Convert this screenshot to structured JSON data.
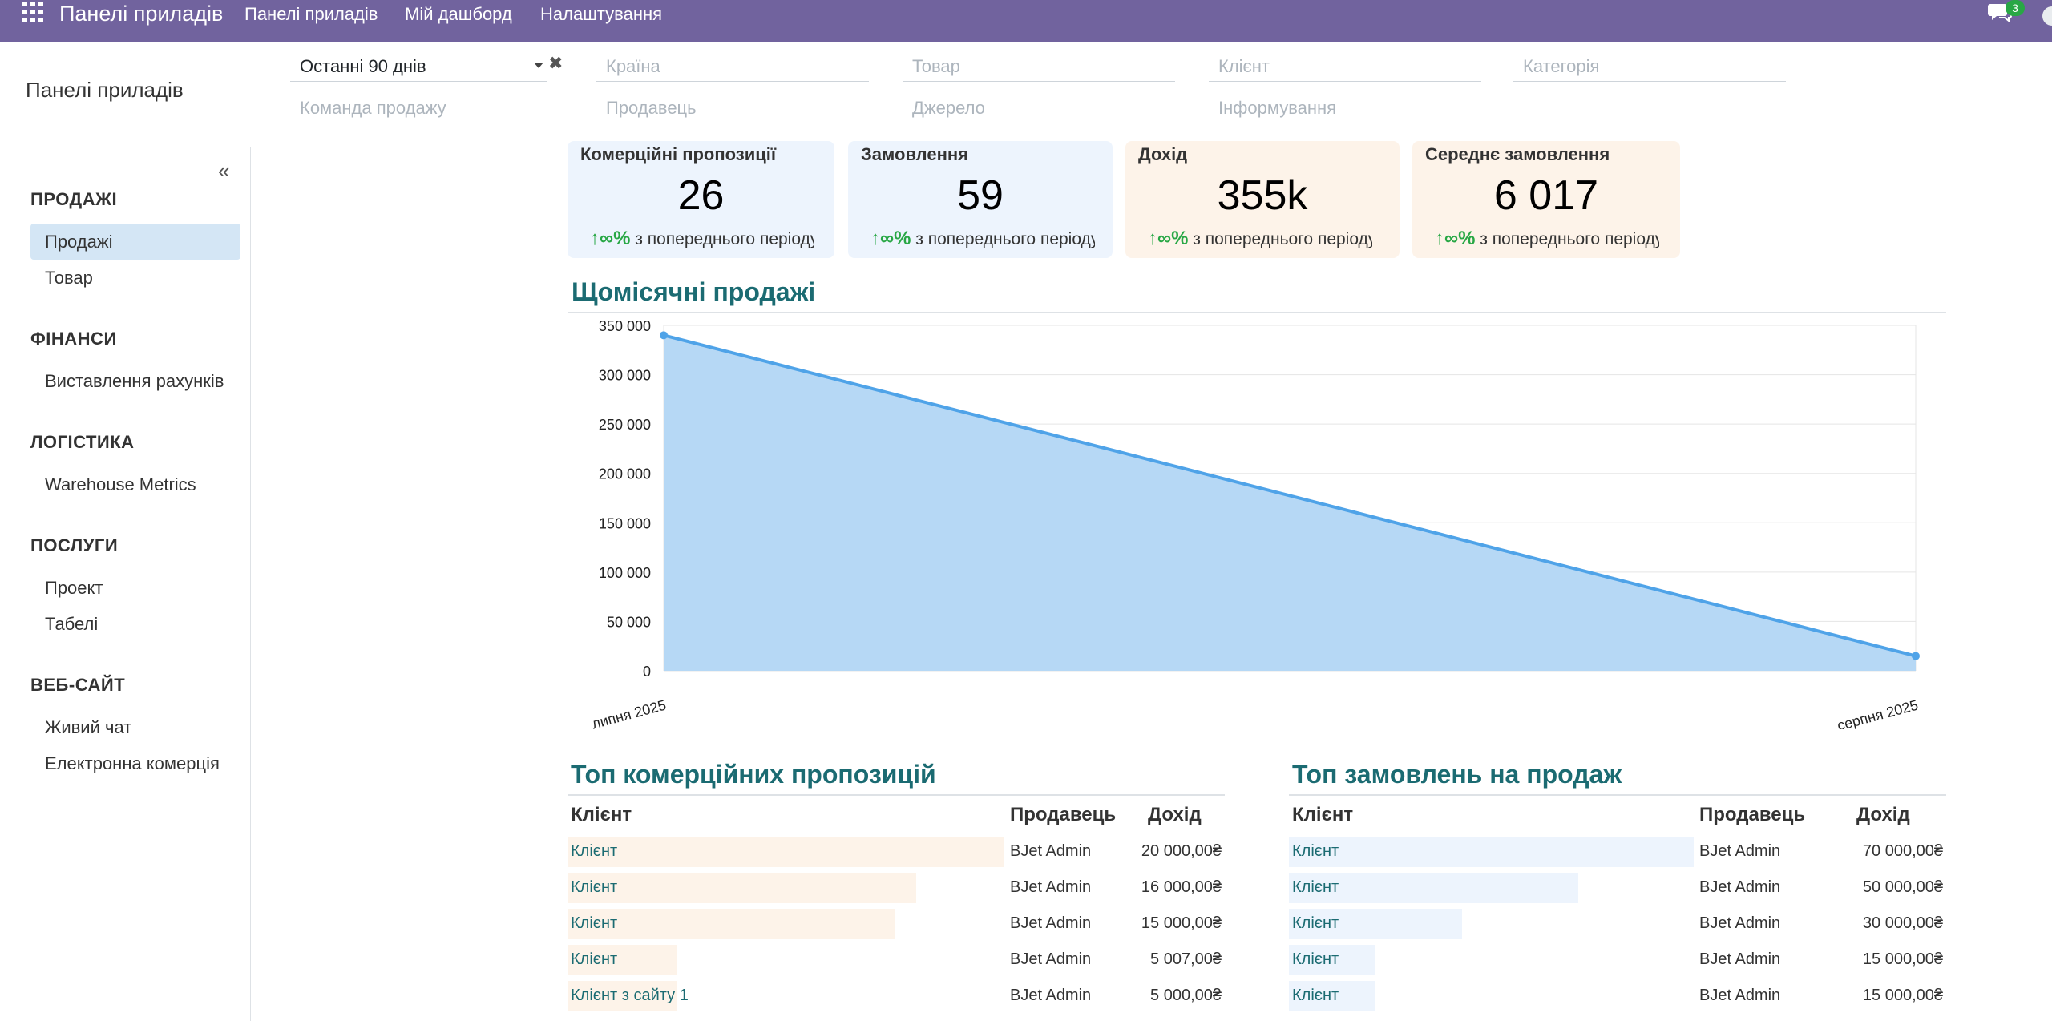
{
  "topbar": {
    "app_title": "Панелі приладів",
    "menu": [
      "Панелі приладів",
      "Мій дашборд",
      "Налаштування"
    ],
    "chat_badge": "3"
  },
  "control": {
    "title": "Панелі приладів",
    "period": "Останні 90 днів",
    "filters": {
      "country": "Країна",
      "product": "Товар",
      "customer": "Клієнт",
      "category": "Категорія",
      "sales_team": "Команда продажу",
      "salesperson": "Продавець",
      "source": "Джерело",
      "medium": "Інформування"
    }
  },
  "sidebar": {
    "sections": [
      {
        "title": "ПРОДАЖІ",
        "items": [
          "Продажі",
          "Товар"
        ]
      },
      {
        "title": "ФІНАНСИ",
        "items": [
          "Виставлення рахунків"
        ]
      },
      {
        "title": "ЛОГІСТИКА",
        "items": [
          "Warehouse Metrics"
        ]
      },
      {
        "title": "ПОСЛУГИ",
        "items": [
          "Проект",
          "Табелі"
        ]
      },
      {
        "title": "ВЕБ-САЙТ",
        "items": [
          "Живий чат",
          "Електронна комерція"
        ]
      }
    ]
  },
  "kpis": [
    {
      "label": "Комерційні пропозиції",
      "value": "26",
      "trend_sign": "↑∞%",
      "trend_text": "з попереднього періоду"
    },
    {
      "label": "Замовлення",
      "value": "59",
      "trend_sign": "↑∞%",
      "trend_text": "з попереднього періоду"
    },
    {
      "label": "Дохід",
      "value": "355k",
      "trend_sign": "↑∞%",
      "trend_text": "з попереднього періоду"
    },
    {
      "label": "Середнє замовлення",
      "value": "6 017",
      "trend_sign": "↑∞%",
      "trend_text": "з попереднього періоду"
    }
  ],
  "monthly_sales": {
    "title": "Щомісячні продажі"
  },
  "chart_data": {
    "type": "area",
    "x": [
      "липня 2025",
      "серпня 2025"
    ],
    "values": [
      340000,
      15000
    ],
    "ylim": [
      0,
      350000
    ],
    "yticks": [
      0,
      50000,
      100000,
      150000,
      200000,
      250000,
      300000,
      350000
    ],
    "ytick_labels": [
      "0",
      "50 000",
      "100 000",
      "150 000",
      "200 000",
      "250 000",
      "300 000",
      "350 000"
    ],
    "grid": true,
    "line_color": "#4fa3e8",
    "fill_color": "#b6d8f5"
  },
  "top_quotations": {
    "title": "Топ комерційних пропозицій",
    "headers": [
      "Клієнт",
      "Продавець",
      "Дохід"
    ],
    "rows": [
      {
        "client": "Клієнт",
        "seller": "BJet Admin",
        "revenue": "20 000,00₴",
        "amount": 20000
      },
      {
        "client": "Клієнт",
        "seller": "BJet Admin",
        "revenue": "16 000,00₴",
        "amount": 16000
      },
      {
        "client": "Клієнт",
        "seller": "BJet Admin",
        "revenue": "15 000,00₴",
        "amount": 15000
      },
      {
        "client": "Клієнт",
        "seller": "BJet Admin",
        "revenue": "5 007,00₴",
        "amount": 5007
      },
      {
        "client": "Клієнт з сайту 1",
        "seller": "BJet Admin",
        "revenue": "5 000,00₴",
        "amount": 5000
      }
    ]
  },
  "top_orders": {
    "title": "Топ замовлень на продаж",
    "headers": [
      "Клієнт",
      "Продавець",
      "Дохід"
    ],
    "rows": [
      {
        "client": "Клієнт",
        "seller": "BJet Admin",
        "revenue": "70 000,00₴",
        "amount": 70000
      },
      {
        "client": "Клієнт",
        "seller": "BJet Admin",
        "revenue": "50 000,00₴",
        "amount": 50000
      },
      {
        "client": "Клієнт",
        "seller": "BJet Admin",
        "revenue": "30 000,00₴",
        "amount": 30000
      },
      {
        "client": "Клієнт",
        "seller": "BJet Admin",
        "revenue": "15 000,00₴",
        "amount": 15000
      },
      {
        "client": "Клієнт",
        "seller": "BJet Admin",
        "revenue": "15 000,00₴",
        "amount": 15000
      }
    ]
  }
}
